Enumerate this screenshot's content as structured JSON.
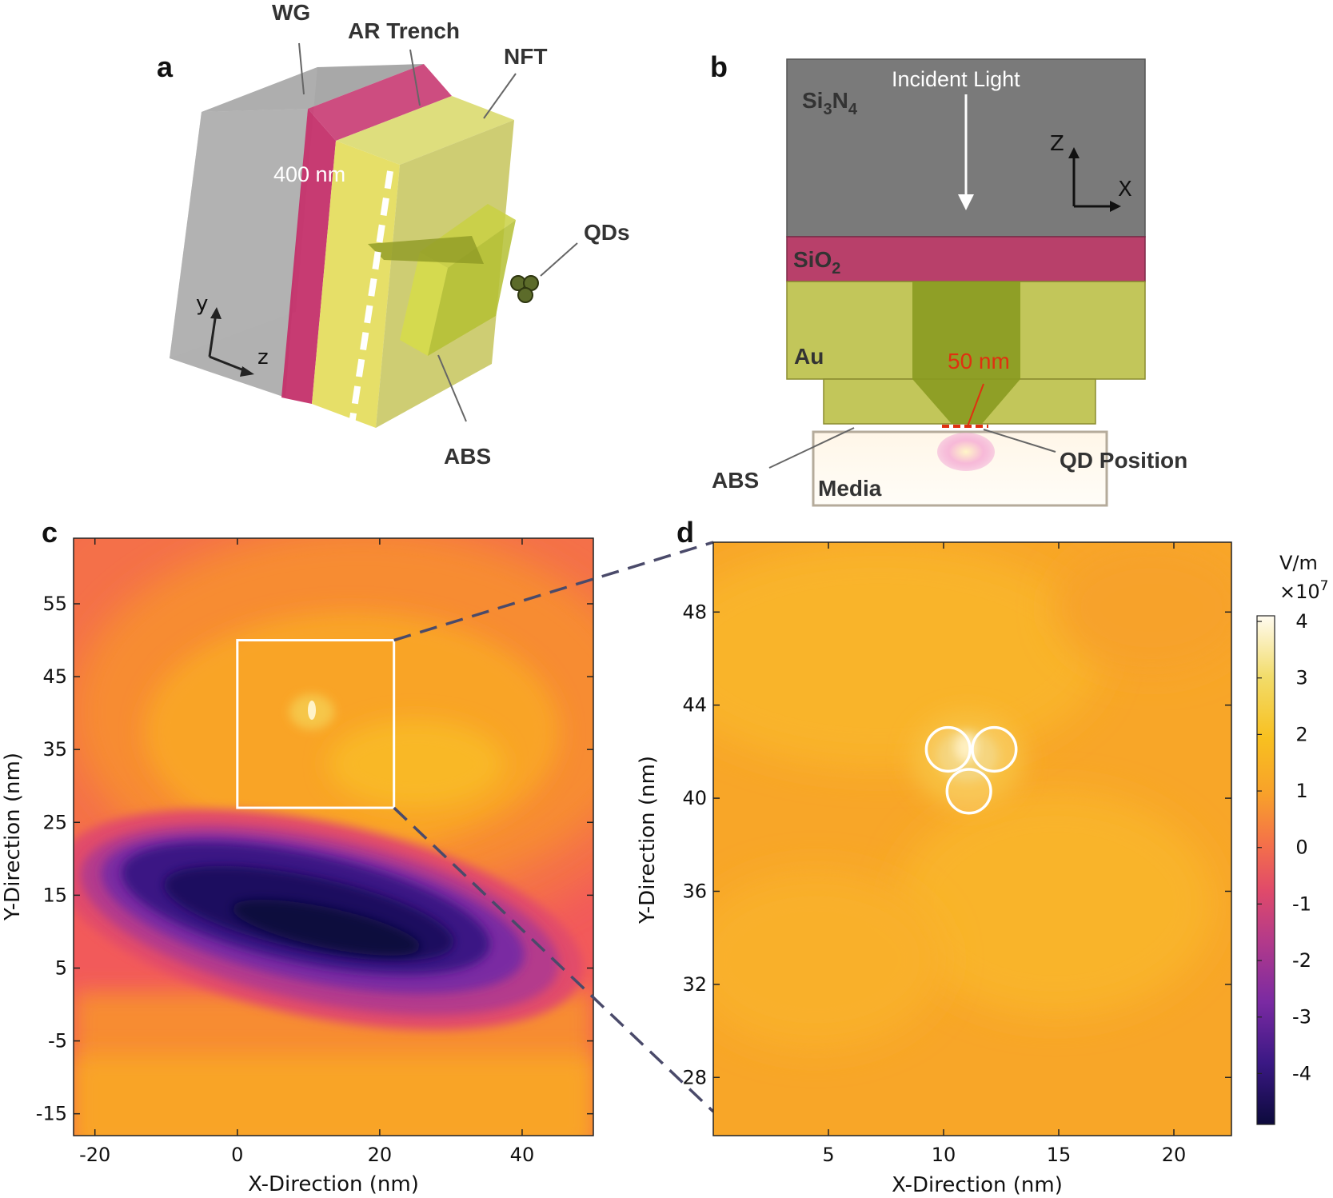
{
  "panels": {
    "a": {
      "letter": "a",
      "labels": {
        "wg": "WG",
        "ar_trench": "AR Trench",
        "nft": "NFT",
        "qds": "QDs",
        "abs": "ABS",
        "dimension": "400 nm",
        "axis_y": "y",
        "axis_z": "z"
      },
      "colors": {
        "wg": "#9a9a9a",
        "ar_trench": "#c4306a",
        "nft": "#d8d650",
        "abs": "#b8c43c"
      }
    },
    "b": {
      "letter": "b",
      "labels": {
        "si3n4_base": "Si",
        "si3n4_sub1": "3",
        "si3n4_mid": "N",
        "si3n4_sub2": "4",
        "incident_light": "Incident Light",
        "sio2_base": "SiO",
        "sio2_sub": "2",
        "au": "Au",
        "dimension": "50 nm",
        "qd_position": "QD Position",
        "abs": "ABS",
        "media": "Media",
        "axis_z": "Z",
        "axis_x": "X"
      },
      "colors": {
        "si3n4": "#7a7a7a",
        "sio2": "#b8406a",
        "au": "#c2c65a",
        "au_core": "#8a9a20",
        "dimension": "#e03010"
      }
    },
    "c": {
      "letter": "c"
    },
    "d": {
      "letter": "d"
    }
  },
  "chart_data": [
    {
      "type": "heatmap",
      "panel": "c",
      "xlabel": "X-Direction (nm)",
      "ylabel": "Y-Direction (nm)",
      "xlim": [
        -23,
        50
      ],
      "ylim": [
        -18,
        64
      ],
      "xticks": [
        -20,
        0,
        20,
        40
      ],
      "yticks": [
        -15,
        -5,
        5,
        15,
        25,
        35,
        45,
        55
      ],
      "field_min_region": {
        "x_center": 15,
        "y_center": 8,
        "value": -4.5
      },
      "field_max_region": {
        "x_center": 12,
        "y_center": 41,
        "value": 3.0
      },
      "zoom_box": {
        "x": [
          0,
          22
        ],
        "y": [
          27,
          50
        ]
      }
    },
    {
      "type": "heatmap",
      "panel": "d",
      "xlabel": "X-Direction (nm)",
      "ylabel": "Y-Direction (nm)",
      "xlim": [
        0,
        22.5
      ],
      "ylim": [
        25.5,
        51
      ],
      "xticks": [
        5,
        10,
        15,
        20
      ],
      "yticks": [
        28,
        32,
        36,
        40,
        44,
        48
      ],
      "qd_circles": [
        {
          "x": 10.2,
          "y": 42.1,
          "r": 0.95
        },
        {
          "x": 12.2,
          "y": 42.1,
          "r": 0.95
        },
        {
          "x": 11.1,
          "y": 40.3,
          "r": 0.95
        }
      ],
      "colorbar": {
        "unit": "V/m",
        "scale_base": "×10",
        "scale_exp": "7",
        "range": [
          -4.9,
          4.1
        ],
        "ticks": [
          4,
          3,
          2,
          1,
          0,
          -1,
          -2,
          -3,
          -4
        ]
      }
    }
  ]
}
